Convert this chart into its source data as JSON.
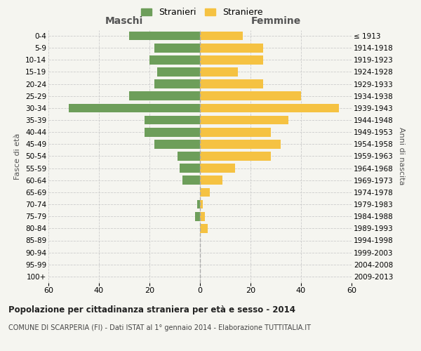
{
  "age_groups": [
    "0-4",
    "5-9",
    "10-14",
    "15-19",
    "20-24",
    "25-29",
    "30-34",
    "35-39",
    "40-44",
    "45-49",
    "50-54",
    "55-59",
    "60-64",
    "65-69",
    "70-74",
    "75-79",
    "80-84",
    "85-89",
    "90-94",
    "95-99",
    "100+"
  ],
  "birth_years": [
    "2009-2013",
    "2004-2008",
    "1999-2003",
    "1994-1998",
    "1989-1993",
    "1984-1988",
    "1979-1983",
    "1974-1978",
    "1969-1973",
    "1964-1968",
    "1959-1963",
    "1954-1958",
    "1949-1953",
    "1944-1948",
    "1939-1943",
    "1934-1938",
    "1929-1933",
    "1924-1928",
    "1919-1923",
    "1914-1918",
    "≤ 1913"
  ],
  "maschi": [
    28,
    18,
    20,
    17,
    18,
    28,
    52,
    22,
    22,
    18,
    9,
    8,
    7,
    0,
    1,
    2,
    0,
    0,
    0,
    0,
    0
  ],
  "femmine": [
    17,
    25,
    25,
    15,
    25,
    40,
    55,
    35,
    28,
    32,
    28,
    14,
    9,
    4,
    1,
    2,
    3,
    0,
    0,
    0,
    0
  ],
  "maschi_color": "#6d9e5a",
  "femmine_color": "#f5c242",
  "background_color": "#f5f5f0",
  "grid_color": "#cccccc",
  "title": "Popolazione per cittadinanza straniera per età e sesso - 2014",
  "subtitle": "COMUNE DI SCARPERIA (FI) - Dati ISTAT al 1° gennaio 2014 - Elaborazione TUTTITALIA.IT",
  "xlabel_left": "Maschi",
  "xlabel_right": "Femmine",
  "ylabel_left": "Fasce di età",
  "ylabel_right": "Anni di nascita",
  "legend_maschi": "Stranieri",
  "legend_femmine": "Straniere",
  "xlim": 60
}
